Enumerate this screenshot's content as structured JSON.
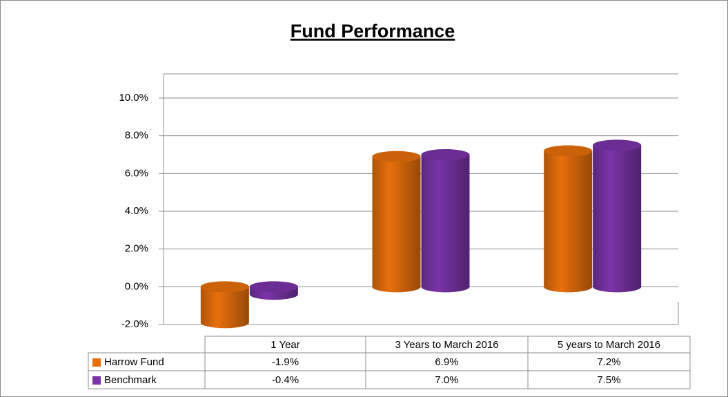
{
  "chart_data": {
    "type": "bar",
    "title": "Fund Performance",
    "categories": [
      "1 Year",
      "3 Years to March 2016",
      "5 years to March 2016"
    ],
    "series": [
      {
        "name": "Harrow Fund",
        "color": "#e8700c",
        "values": [
          -1.9,
          6.9,
          7.2
        ],
        "value_labels": [
          "-1.9%",
          "6.9%",
          "7.2%"
        ]
      },
      {
        "name": "Benchmark",
        "color": "#7a34a8",
        "values": [
          -0.4,
          7.0,
          7.5
        ],
        "value_labels": [
          "-0.4%",
          "7.0%",
          "7.5%"
        ]
      }
    ],
    "ylim": [
      -2,
      10
    ],
    "yticks": [
      {
        "value": -2,
        "label": "-2.0%"
      },
      {
        "value": 0,
        "label": "0.0%"
      },
      {
        "value": 2,
        "label": "2.0%"
      },
      {
        "value": 4,
        "label": "4.0%"
      },
      {
        "value": 6,
        "label": "6.0%"
      },
      {
        "value": 8,
        "label": "8.0%"
      },
      {
        "value": 10,
        "label": "10.0%"
      }
    ],
    "grid": true
  }
}
